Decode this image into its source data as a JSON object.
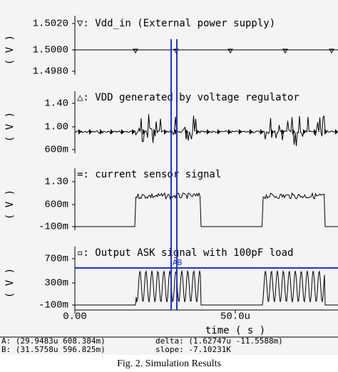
{
  "panels": [
    {
      "label": "▽: Vdd_in  (External power supply)",
      "unit": "( V )",
      "yticks": [
        "1.5020",
        "1.5000",
        "1.4980"
      ]
    },
    {
      "label": "△: VDD generated by voltage regulator",
      "unit": "( V )",
      "yticks": [
        "1.40",
        "1.00",
        "600m"
      ]
    },
    {
      "label": "=: current sensor signal",
      "unit": "( V )",
      "yticks": [
        "1.30",
        "600m",
        "-100m"
      ]
    },
    {
      "label": "▫: Output ASK signal with 100pF load",
      "unit": "( V )",
      "yticks": [
        "700m",
        "300m",
        "-100m"
      ]
    }
  ],
  "x_axis": {
    "ticks": [
      "0.00",
      "50.0u"
    ],
    "label": "time ( s )"
  },
  "cursor": "AB",
  "readout": {
    "a": "A: (29.9483u 608.384m)",
    "delta": "delta: (1.62747u -11.5588m)",
    "b": "B: (31.5758u 596.825m)",
    "slope": "slope: -7.10231K"
  },
  "caption": "Fig. 2. Simulation Results"
}
